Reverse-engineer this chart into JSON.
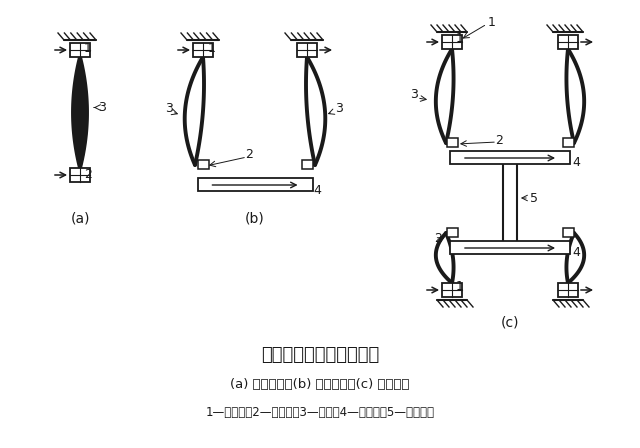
{
  "title1": "一相多个断口灭弧示意图",
  "title2": "(a) 一个断口；(b) 二个断口；(c) 四个断口",
  "title3": "1—静触头；2—动触头；3—电弧；4—触头桥；5—绝缘拉杆",
  "bg_color": "#ffffff",
  "label_a": "(a)",
  "label_b": "(b)",
  "label_c": "(c)"
}
